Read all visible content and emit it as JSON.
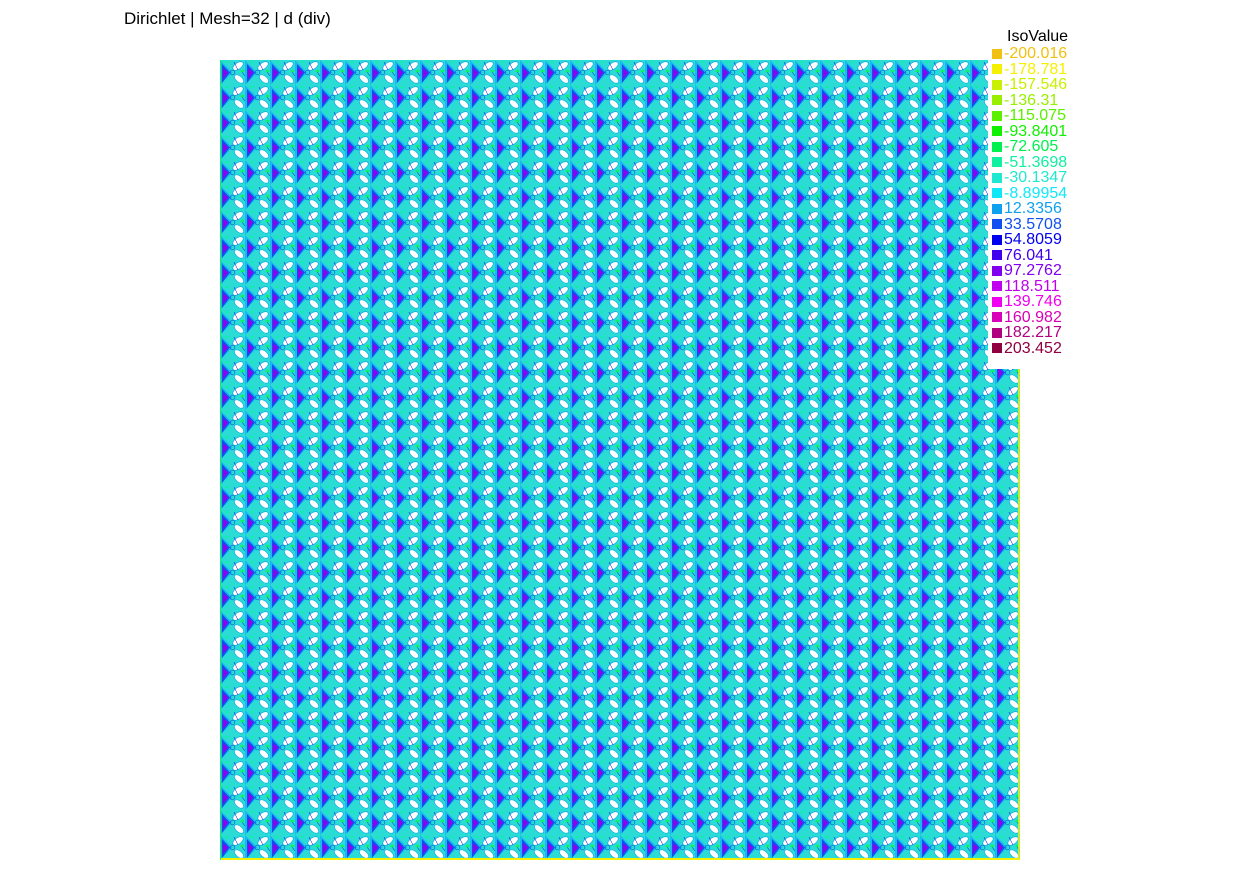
{
  "title": "Dirichlet | Mesh=32 | d (div)",
  "chart_data": {
    "type": "heatmap",
    "title": "Dirichlet | Mesh=32 | d (div)",
    "legend_title": "IsoValue",
    "legend_position": "top-right",
    "isovalues": [
      {
        "value": "-200.016",
        "color": "#f2c010"
      },
      {
        "value": "-178.781",
        "color": "#f5f000"
      },
      {
        "value": "-157.546",
        "color": "#c8f000"
      },
      {
        "value": "-136.31",
        "color": "#98f000"
      },
      {
        "value": "-115.075",
        "color": "#5af000"
      },
      {
        "value": "-93.8401",
        "color": "#10f000"
      },
      {
        "value": "-72.605",
        "color": "#00f050"
      },
      {
        "value": "-51.3698",
        "color": "#10f0a0"
      },
      {
        "value": "-30.1347",
        "color": "#20e8d0"
      },
      {
        "value": "-8.89954",
        "color": "#10e8f8"
      },
      {
        "value": "12.3356",
        "color": "#10a0f0"
      },
      {
        "value": "33.5708",
        "color": "#1050f0"
      },
      {
        "value": "54.8059",
        "color": "#0000f0"
      },
      {
        "value": "76.041",
        "color": "#4000f0"
      },
      {
        "value": "97.2762",
        "color": "#8000f0"
      },
      {
        "value": "118.511",
        "color": "#c000f0"
      },
      {
        "value": "139.746",
        "color": "#f000f0"
      },
      {
        "value": "160.982",
        "color": "#d800b8"
      },
      {
        "value": "182.217",
        "color": "#b00080"
      },
      {
        "value": "203.452",
        "color": "#900040"
      }
    ],
    "mesh_cells": 32,
    "field": "d (div)",
    "boundary_condition": "Dirichlet"
  }
}
